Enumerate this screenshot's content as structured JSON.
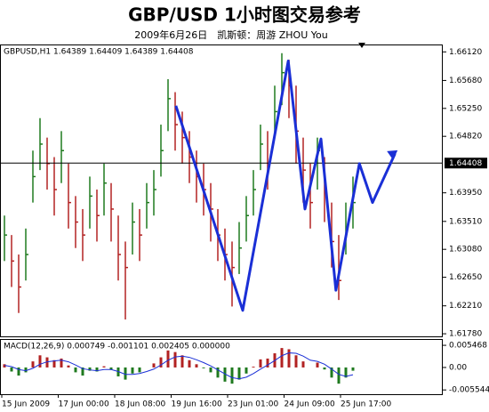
{
  "chart_data": {
    "type": "ohlc",
    "title": "GBP/USD 1小时图交易参考",
    "subtitle": "2009年6月26日　凯斯顿：周游 ZHOU You",
    "header": "GBPUSD,H1  1.64389 1.64409 1.64389 1.64408",
    "close": [
      1.633,
      1.629,
      1.625,
      1.63,
      1.642,
      1.647,
      1.644,
      1.64,
      1.646,
      1.638,
      1.635,
      1.633,
      1.639,
      1.636,
      1.641,
      1.637,
      1.63,
      1.628,
      1.635,
      1.633,
      1.638,
      1.64,
      1.646,
      1.654,
      1.65,
      1.648,
      1.645,
      1.642,
      1.64,
      1.637,
      1.633,
      1.63,
      1.628,
      1.631,
      1.636,
      1.64,
      1.647,
      1.644,
      1.652,
      1.658,
      1.656,
      1.649,
      1.643,
      1.638,
      1.646,
      1.64,
      1.632,
      1.626,
      1.634,
      1.638
    ],
    "high": [
      1.636,
      1.633,
      1.63,
      1.634,
      1.646,
      1.651,
      1.648,
      1.645,
      1.649,
      1.644,
      1.639,
      1.637,
      1.642,
      1.64,
      1.644,
      1.641,
      1.636,
      1.632,
      1.638,
      1.637,
      1.641,
      1.643,
      1.65,
      1.657,
      1.655,
      1.652,
      1.649,
      1.646,
      1.644,
      1.641,
      1.637,
      1.634,
      1.632,
      1.635,
      1.639,
      1.643,
      1.65,
      1.649,
      1.656,
      1.661,
      1.66,
      1.656,
      1.648,
      1.644,
      1.648,
      1.645,
      1.638,
      1.633,
      1.638,
      1.642
    ],
    "low": [
      1.629,
      1.625,
      1.621,
      1.626,
      1.638,
      1.643,
      1.64,
      1.636,
      1.641,
      1.634,
      1.631,
      1.629,
      1.634,
      1.632,
      1.636,
      1.632,
      1.626,
      1.62,
      1.63,
      1.629,
      1.634,
      1.636,
      1.642,
      1.649,
      1.646,
      1.644,
      1.641,
      1.638,
      1.636,
      1.632,
      1.629,
      1.626,
      1.622,
      1.627,
      1.632,
      1.636,
      1.643,
      1.64,
      1.648,
      1.653,
      1.651,
      1.644,
      1.638,
      1.634,
      1.64,
      1.635,
      1.628,
      1.623,
      1.63,
      1.634
    ],
    "up_color": "#1f7a1f",
    "down_color": "#b22222",
    "zigzag": {
      "color": "#1a2fd6",
      "x": [
        24.1,
        33.5,
        39.9,
        42.25,
        44.5,
        46.6,
        49.9,
        51.75,
        54.9
      ],
      "y": [
        1.6529,
        1.6214,
        1.6598,
        1.637,
        1.6478,
        1.6245,
        1.644,
        1.638,
        1.6455
      ]
    },
    "xlim": [
      -0.5,
      61.625
    ],
    "ylim": [
      1.6174,
      1.6622
    ],
    "yticks": [
      {
        "value": 1.6612,
        "label": "1.66120"
      },
      {
        "value": 1.6568,
        "label": "1.65680"
      },
      {
        "value": 1.6525,
        "label": "1.65250"
      },
      {
        "value": 1.6482,
        "label": "1.64820"
      },
      {
        "value": 1.6395,
        "label": "1.63950"
      },
      {
        "value": 1.6351,
        "label": "1.63510"
      },
      {
        "value": 1.6308,
        "label": "1.63080"
      },
      {
        "value": 1.6265,
        "label": "1.62650"
      },
      {
        "value": 1.6221,
        "label": "1.62210"
      },
      {
        "value": 1.6178,
        "label": "1.61780"
      }
    ],
    "current": {
      "value": 1.64408,
      "label": "1.64408"
    },
    "xlabels": [
      "15 Jun 2009",
      "17 Jun 00:00",
      "18 Jun 08:00",
      "19 Jun 16:00",
      "23 Jun 01:00",
      "24 Jun 09:00",
      "25 Jun 17:00"
    ],
    "macd": {
      "header": "MACD(12,26,9) 0.000749 -0.001101 0.002405 0.000000",
      "hist_up_color": "#b22222",
      "hist_down_color": "#1f7a1f",
      "signal_color": "#1a2fd6",
      "hist": [
        0.0008,
        -0.001,
        -0.002,
        -0.0012,
        0.0015,
        0.003,
        0.0025,
        0.0018,
        0.0022,
        0.0005,
        -0.0012,
        -0.002,
        -0.0008,
        -0.001,
        0.0003,
        -0.0006,
        -0.0022,
        -0.003,
        -0.0015,
        -0.0012,
        0.0,
        0.001,
        0.0025,
        0.0042,
        0.0038,
        0.003,
        0.0018,
        0.0008,
        -0.0002,
        -0.0012,
        -0.0025,
        -0.0035,
        -0.004,
        -0.003,
        -0.0015,
        0.0002,
        0.002,
        0.0022,
        0.0035,
        0.0048,
        0.0045,
        0.003,
        0.0015,
        0.0,
        0.0012,
        -0.0005,
        -0.0025,
        -0.004,
        -0.0025,
        -0.0008
      ],
      "signal": [
        0.0005,
        0.0002,
        -0.0005,
        -0.0008,
        -0.0002,
        0.0008,
        0.0014,
        0.0016,
        0.0018,
        0.0014,
        0.0006,
        -0.0003,
        -0.0006,
        -0.0008,
        -0.0005,
        -0.0005,
        -0.001,
        -0.0017,
        -0.0017,
        -0.0015,
        -0.001,
        -0.0004,
        0.0006,
        0.0018,
        0.0026,
        0.0028,
        0.0025,
        0.0019,
        0.0012,
        0.0004,
        -0.0006,
        -0.0016,
        -0.0025,
        -0.0028,
        -0.0024,
        -0.0015,
        -0.0004,
        0.0006,
        0.0017,
        0.0029,
        0.0036,
        0.0035,
        0.0028,
        0.0018,
        0.0015,
        0.0008,
        -0.0004,
        -0.0017,
        -0.0022,
        -0.0018
      ],
      "ylim": [
        -0.0066,
        0.0068
      ],
      "yticks": [
        0.005468,
        {
          "value": 0,
          "label": "0.00"
        },
        -0.005544
      ]
    }
  }
}
